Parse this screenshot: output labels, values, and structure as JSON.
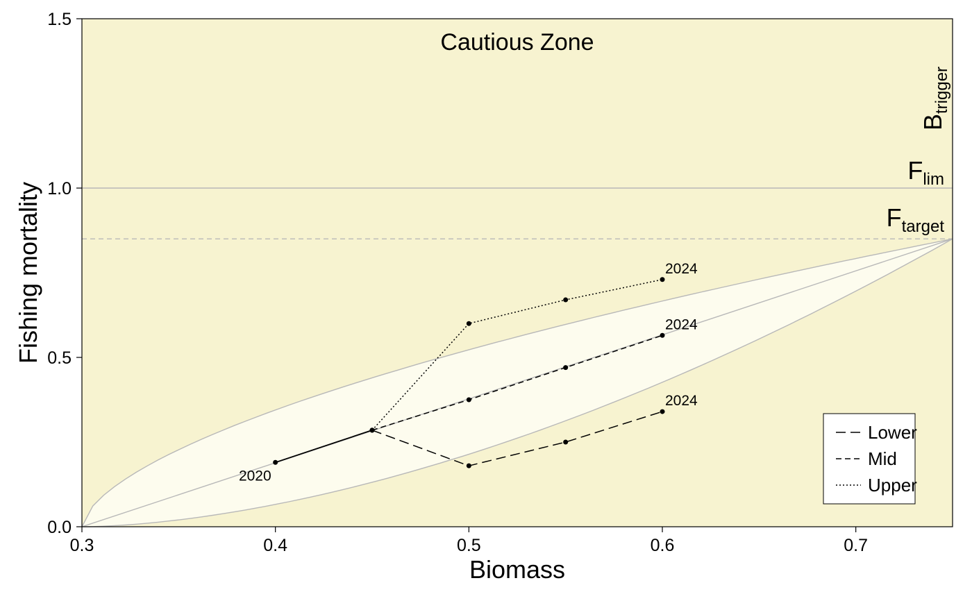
{
  "chart_data": {
    "type": "line",
    "title": "",
    "zone_label": "Cautious Zone",
    "xlabel": "Biomass",
    "ylabel": "Fishing mortality",
    "xlim": [
      0.3,
      0.75
    ],
    "ylim": [
      0,
      1.5
    ],
    "xticks": [
      0.3,
      0.4,
      0.5,
      0.6,
      0.7
    ],
    "yticks": [
      0.0,
      0.5,
      1.0,
      1.5
    ],
    "xtick_labels": [
      "0.3",
      "0.4",
      "0.5",
      "0.6",
      "0.7"
    ],
    "ytick_labels": [
      "0.0",
      "0.5",
      "1.0",
      "1.5"
    ],
    "grid": false,
    "legend_position": "bottom-right",
    "reference_lines": {
      "F_lim": {
        "y": 1.0,
        "label_main": "F",
        "label_sub": "lim"
      },
      "F_target": {
        "y": 0.85,
        "label_main": "F",
        "label_sub": "target"
      },
      "B_trigger": {
        "label_main": "B",
        "label_sub": "trigger"
      }
    },
    "envelope": {
      "start": [
        0.3,
        0.0
      ],
      "end": [
        0.75,
        0.85
      ],
      "upper_exponent": 0.6,
      "lower_exponent": 1.7
    },
    "historical": {
      "x": [
        0.4,
        0.45
      ],
      "y": [
        0.19,
        0.285
      ],
      "start_label": "2020"
    },
    "series": [
      {
        "name": "Lower",
        "x": [
          0.45,
          0.5,
          0.55,
          0.6
        ],
        "y": [
          0.285,
          0.18,
          0.25,
          0.34
        ],
        "dash": "14 7",
        "end_label": "2024"
      },
      {
        "name": "Mid",
        "x": [
          0.45,
          0.5,
          0.55,
          0.6
        ],
        "y": [
          0.285,
          0.375,
          0.47,
          0.565
        ],
        "dash": "8 5",
        "end_label": "2024"
      },
      {
        "name": "Upper",
        "x": [
          0.45,
          0.5,
          0.55,
          0.6
        ],
        "y": [
          0.285,
          0.6,
          0.67,
          0.73
        ],
        "dash": "2 3",
        "end_label": "2024"
      }
    ],
    "colors": {
      "zone_background": "#f7f3d0",
      "envelope_fill": "#fdfcee",
      "reference_line": "#b8b8b8",
      "series": "#000000"
    }
  }
}
